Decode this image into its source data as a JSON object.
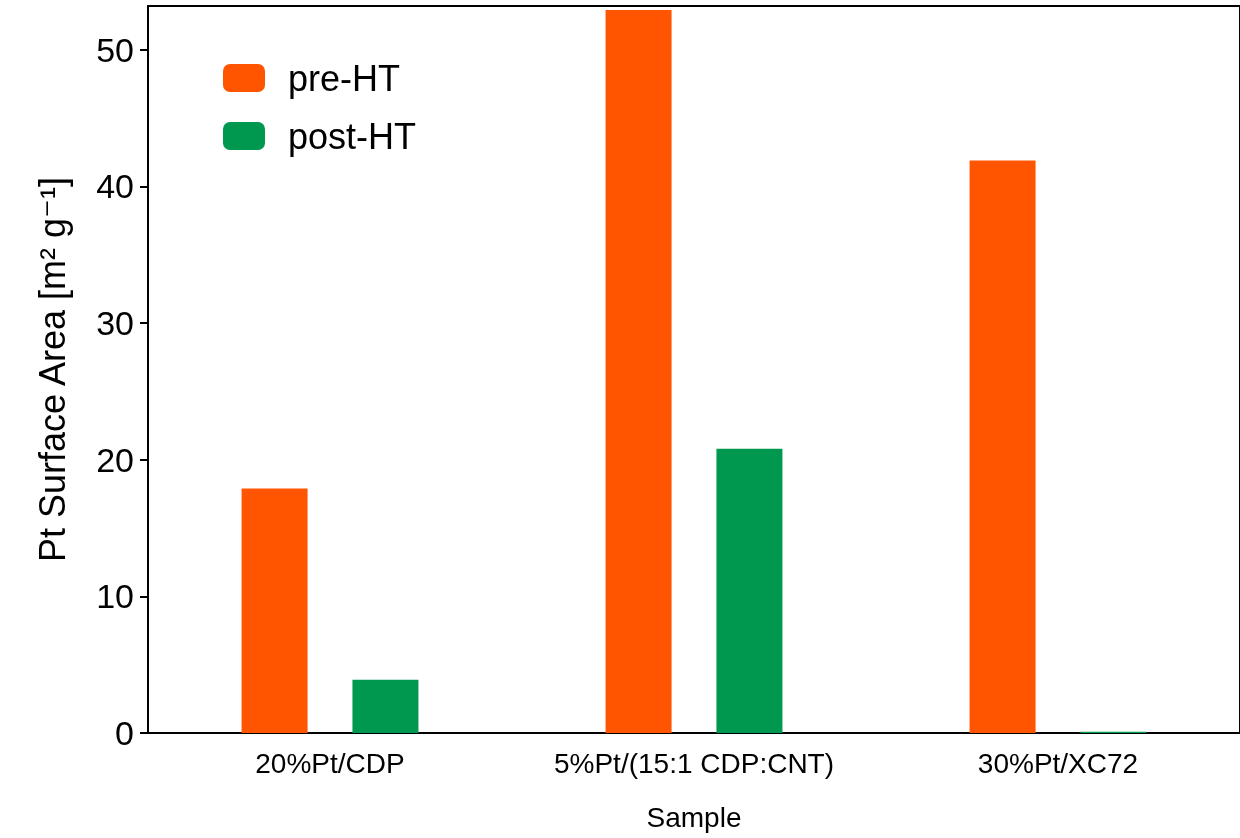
{
  "chart_data": {
    "type": "bar",
    "xlabel": "Sample",
    "ylabel": "Pt Surface Area [m² g⁻¹]",
    "categories": [
      "20%Pt/CDP",
      "5%Pt/(15:1 CDP:CNT)",
      "30%Pt/XC72"
    ],
    "series": [
      {
        "name": "pre-HT",
        "color": "#ff5400",
        "values": [
          17.9,
          52.9,
          41.9
        ]
      },
      {
        "name": "post-HT",
        "color": "#00984f",
        "values": [
          3.9,
          20.8,
          0.1
        ]
      }
    ],
    "ylim": [
      0,
      53.2
    ],
    "yticks": [
      0,
      10,
      20,
      30,
      40,
      50
    ],
    "grid": false,
    "legend": "top left"
  }
}
